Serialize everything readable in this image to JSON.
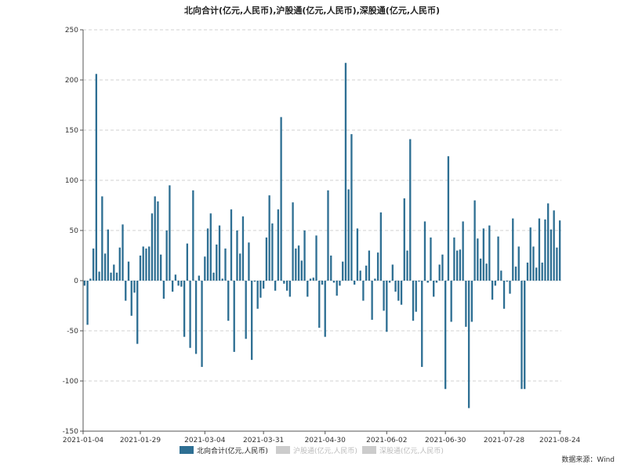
{
  "chart_data": {
    "type": "bar",
    "title": "北向合计(亿元,人民币),沪股通(亿元,人民币),深股通(亿元,人民币)",
    "xlabel": "",
    "ylabel": "",
    "ylim": [
      -150,
      250
    ],
    "yticks": [
      -150,
      -100,
      -50,
      0,
      50,
      100,
      150,
      200,
      250
    ],
    "xtick_labels": [
      "2021-01-04",
      "2021-01-29",
      "2021-03-04",
      "2021-03-31",
      "2021-04-30",
      "2021-06-02",
      "2021-06-30",
      "2021-07-28",
      "2021-08-24"
    ],
    "grid": "horizontal dashed",
    "legend_position": "bottom",
    "series": [
      {
        "name": "北向合计(亿元,人民币)",
        "color": "#2e6f93",
        "active": true,
        "values": [
          -5,
          -44,
          2,
          32,
          206,
          9,
          84,
          27,
          51,
          8,
          16,
          8,
          33,
          56,
          -20,
          19,
          -35,
          -12,
          -63,
          25,
          34,
          32,
          34,
          67,
          84,
          79,
          26,
          -18,
          50,
          95,
          -11,
          6,
          -5,
          -6,
          -56,
          37,
          -67,
          90,
          -73,
          5,
          -86,
          24,
          52,
          67,
          8,
          36,
          55,
          2,
          32,
          -40,
          71,
          -71,
          50,
          27,
          64,
          -58,
          38,
          -79,
          -1,
          -28,
          -17,
          -8,
          43,
          85,
          57,
          -10,
          71,
          163,
          -3,
          -10,
          -16,
          78,
          32,
          35,
          20,
          50,
          -16,
          2,
          3,
          45,
          -47,
          -4,
          -56,
          90,
          25,
          -2,
          -15,
          -5,
          19,
          217,
          91,
          146,
          -4,
          52,
          10,
          -20,
          15,
          30,
          -39,
          2,
          28,
          68,
          -30,
          -51,
          -2,
          16,
          -11,
          -20,
          -24,
          82,
          30,
          141,
          -40,
          -31,
          -1,
          -86,
          59,
          -2,
          43,
          -16,
          -2,
          16,
          26,
          -108,
          124,
          -41,
          43,
          30,
          31,
          59,
          -46,
          -127,
          -41,
          80,
          42,
          22,
          52,
          17,
          55,
          -19,
          -5,
          44,
          10,
          -28,
          -1,
          -13,
          62,
          14,
          34,
          -108,
          -108,
          18,
          53,
          34,
          13,
          62,
          18,
          61,
          77,
          51,
          70,
          33,
          60
        ]
      },
      {
        "name": "沪股通(亿元,人民币)",
        "color": "#cccccc",
        "active": false,
        "values": []
      },
      {
        "name": "深股通(亿元,人民币)",
        "color": "#cccccc",
        "active": false,
        "values": []
      }
    ],
    "source": "数据来源：Wind"
  }
}
